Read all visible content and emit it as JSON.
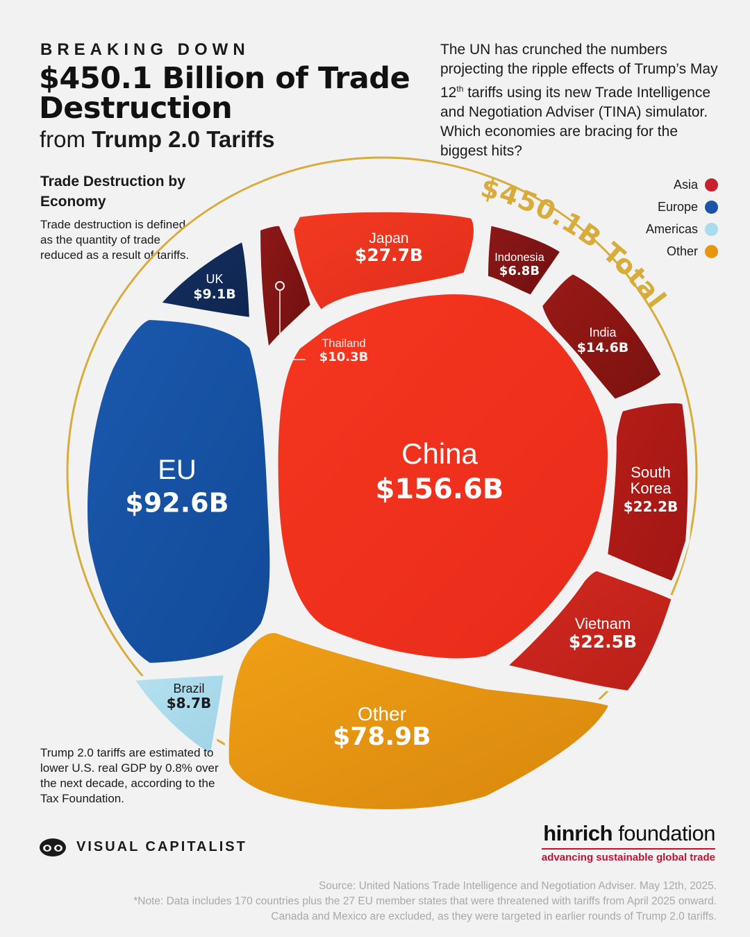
{
  "header": {
    "kicker": "BREAKING DOWN",
    "title": "$450.1 Billion of Trade Destruction",
    "subtitle_prefix": "from ",
    "subtitle_strong": "Trump 2.0 Tariffs"
  },
  "intro": {
    "text_before_sup": "The UN has crunched the numbers projecting the ripple effects of Trump’s May 12",
    "sup": "th",
    "text_after_sup": " tariffs using its new Trade Intelligence and Negotiation Adviser (TINA) simulator. Which economies are bracing for the biggest hits?"
  },
  "section": {
    "heading": "Trade Destruction by Economy",
    "description": "Trade destruction is defined as the quantity of trade reduced as a result of tariffs."
  },
  "footnote_left": "Trump 2.0 tariffs are estimated to lower U.S. real GDP by 0.8% over the next decade, according to the Tax Foundation.",
  "total_label": "$450.1B Total",
  "colors": {
    "accent_gold": "#d8ac3a",
    "asia": "#c8202c",
    "europe": "#1a55a8",
    "americas": "#a9dcec",
    "other": "#e8950f"
  },
  "chart_data": {
    "type": "voronoi treemap",
    "title": "$450.1 Billion of Trade Destruction from Trump 2.0 Tariffs",
    "total": 450.1,
    "unit": "$B",
    "legend": [
      {
        "name": "Asia",
        "color": "#c8202c"
      },
      {
        "name": "Europe",
        "color": "#1a55a8"
      },
      {
        "name": "Americas",
        "color": "#a9dcec"
      },
      {
        "name": "Other",
        "color": "#e8950f"
      }
    ],
    "legend_position": "top-right",
    "cells": [
      {
        "name": "China",
        "value": 156.6,
        "label": "$156.6B",
        "region": "Asia"
      },
      {
        "name": "EU",
        "value": 92.6,
        "label": "$92.6B",
        "region": "Europe"
      },
      {
        "name": "Other",
        "value": 78.9,
        "label": "$78.9B",
        "region": "Other"
      },
      {
        "name": "Japan",
        "value": 27.7,
        "label": "$27.7B",
        "region": "Asia"
      },
      {
        "name": "Vietnam",
        "value": 22.5,
        "label": "$22.5B",
        "region": "Asia"
      },
      {
        "name": "South Korea",
        "value": 22.2,
        "label": "$22.2B",
        "region": "Asia"
      },
      {
        "name": "India",
        "value": 14.6,
        "label": "$14.6B",
        "region": "Asia"
      },
      {
        "name": "Thailand",
        "value": 10.3,
        "label": "$10.3B",
        "region": "Asia"
      },
      {
        "name": "UK",
        "value": 9.1,
        "label": "$9.1B",
        "region": "Europe"
      },
      {
        "name": "Brazil",
        "value": 8.7,
        "label": "$8.7B",
        "region": "Americas"
      },
      {
        "name": "Indonesia",
        "value": 6.8,
        "label": "$6.8B",
        "region": "Asia"
      }
    ]
  },
  "branding": {
    "vc_name": "VISUAL CAPITALIST",
    "hinrich_bold": "hinrich",
    "hinrich_light": " foundation",
    "hinrich_tagline": "advancing sustainable global trade"
  },
  "source": {
    "line1": "Source: United Nations Trade Intelligence and Negotiation Adviser. May 12th, 2025.",
    "line2": "*Note: Data includes 170 countries plus the 27 EU member states that were threatened with tariffs from April 2025 onward. Canada and Mexico are excluded, as they were targeted in earlier rounds of Trump 2.0 tariffs."
  }
}
